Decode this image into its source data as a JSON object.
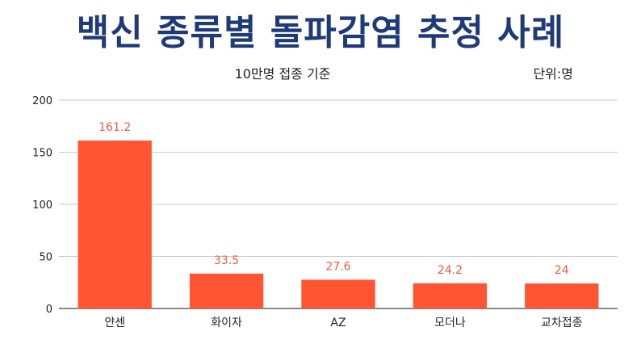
{
  "chart_data": {
    "type": "bar",
    "title": "백신 종류별 돌파감염 추정 사례",
    "subtitle": "10만명 접종 기준",
    "unit_label": "단위:명",
    "categories": [
      "얀센",
      "화이자",
      "AZ",
      "모더나",
      "교차접종"
    ],
    "values": [
      161.2,
      33.5,
      27.6,
      24.2,
      24
    ],
    "data_labels": [
      "161.2",
      "33.5",
      "27.6",
      "24.2",
      "24"
    ],
    "ylim": [
      0,
      200
    ],
    "yticks": [
      0,
      50,
      100,
      150,
      200
    ],
    "bar_color": "#ff5533",
    "label_color": "#f05a3a",
    "grid": true,
    "legend": "none"
  }
}
